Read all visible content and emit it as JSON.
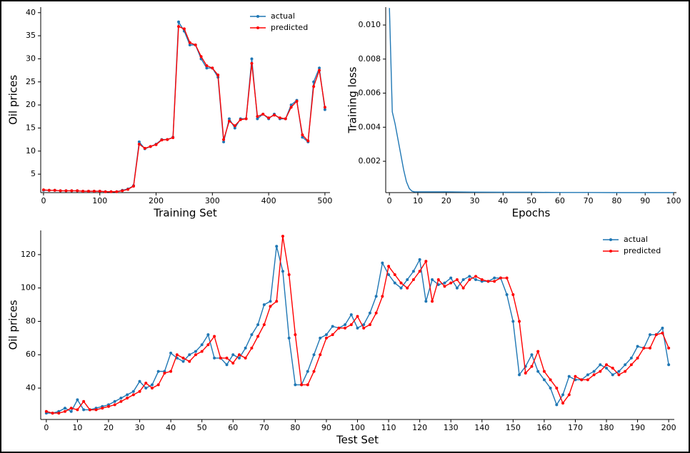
{
  "chart_data": [
    {
      "type": "line",
      "xlabel": "Training Set",
      "ylabel": "Oil prices",
      "legend": "upper right",
      "x": [
        0,
        10,
        20,
        30,
        40,
        50,
        60,
        70,
        80,
        90,
        100,
        110,
        120,
        130,
        140,
        150,
        160,
        170,
        180,
        190,
        200,
        210,
        220,
        230,
        240,
        250,
        260,
        270,
        280,
        290,
        300,
        310,
        320,
        330,
        340,
        350,
        360,
        370,
        380,
        390,
        400,
        410,
        420,
        430,
        440,
        450,
        460,
        470,
        480,
        490,
        500
      ],
      "series": [
        {
          "name": "actual",
          "color": "#1f77b4",
          "values": [
            1.5,
            1.5,
            1.5,
            1.4,
            1.4,
            1.4,
            1.4,
            1.3,
            1.3,
            1.3,
            1.3,
            1.2,
            1.2,
            1.2,
            1.5,
            1.8,
            2.5,
            12,
            10.5,
            11,
            11.5,
            12.5,
            12.5,
            13,
            38,
            36,
            33,
            33,
            30,
            28,
            28,
            26,
            12,
            17,
            15,
            17,
            17,
            30,
            17,
            18,
            17,
            18,
            17,
            17,
            20,
            21,
            13,
            12,
            25,
            28,
            19
          ]
        },
        {
          "name": "predicted",
          "color": "#ff0000",
          "values": [
            1.6,
            1.5,
            1.5,
            1.4,
            1.4,
            1.4,
            1.4,
            1.3,
            1.3,
            1.3,
            1.3,
            1.2,
            1.2,
            1.2,
            1.4,
            1.7,
            2.4,
            11.5,
            10.6,
            11,
            11.4,
            12.4,
            12.5,
            12.9,
            37,
            36.5,
            33.5,
            33,
            30.5,
            28.5,
            28,
            26.5,
            12.5,
            16.5,
            15.5,
            16.8,
            17,
            29,
            17.5,
            18,
            17.2,
            17.8,
            17.2,
            17,
            19.5,
            20.8,
            13.5,
            12.2,
            24,
            27.5,
            19.5
          ]
        }
      ],
      "xlim": [
        -5,
        509
      ],
      "ylim": [
        1,
        41.2
      ],
      "xticks": [
        0,
        100,
        200,
        300,
        400,
        500
      ],
      "yticks": [
        5,
        10,
        15,
        20,
        25,
        30,
        35,
        40
      ]
    },
    {
      "type": "line",
      "xlabel": "Epochs",
      "ylabel": "Training loss",
      "x": [
        0,
        1,
        2,
        3,
        4,
        5,
        6,
        7,
        8,
        9,
        10,
        20,
        30,
        40,
        50,
        60,
        70,
        80,
        90,
        100
      ],
      "series": [
        {
          "color": "#1f77b4",
          "values": [
            0.011,
            0.0049,
            0.0042,
            0.0033,
            0.0024,
            0.0015,
            0.0008,
            0.0004,
            0.00024,
            0.0002,
            0.0002,
            0.0002,
            0.00019,
            0.00018,
            0.00018,
            0.00017,
            0.00017,
            0.00016,
            0.00016,
            0.00016
          ]
        }
      ],
      "xlim": [
        -1.3,
        101
      ],
      "ylim": [
        0.00016,
        0.01105
      ],
      "xticks": [
        0,
        10,
        20,
        30,
        40,
        50,
        60,
        70,
        80,
        90,
        100
      ],
      "yticks": [
        0.002,
        0.004,
        0.006,
        0.008,
        {
          "value": 0.01,
          "label": "0.010"
        }
      ]
    },
    {
      "type": "line",
      "xlabel": "Test Set",
      "ylabel": "Oil prices",
      "legend": "upper right",
      "x": [
        0,
        2,
        4,
        6,
        8,
        10,
        12,
        14,
        16,
        18,
        20,
        22,
        24,
        26,
        28,
        30,
        32,
        34,
        36,
        38,
        40,
        42,
        44,
        46,
        48,
        50,
        52,
        54,
        56,
        58,
        60,
        62,
        64,
        66,
        68,
        70,
        72,
        74,
        76,
        78,
        80,
        82,
        84,
        86,
        88,
        90,
        92,
        94,
        96,
        98,
        100,
        102,
        104,
        106,
        108,
        110,
        112,
        114,
        116,
        118,
        120,
        122,
        124,
        126,
        128,
        130,
        132,
        134,
        136,
        138,
        140,
        142,
        144,
        146,
        148,
        150,
        152,
        154,
        156,
        158,
        160,
        162,
        164,
        166,
        168,
        170,
        172,
        174,
        176,
        178,
        180,
        182,
        184,
        186,
        188,
        190,
        192,
        194,
        196,
        198,
        200
      ],
      "series": [
        {
          "name": "actual",
          "color": "#1f77b4",
          "values": [
            25,
            25,
            26,
            28,
            26,
            33,
            27,
            27,
            28,
            29,
            30,
            32,
            34,
            36,
            38,
            44,
            40,
            42,
            50,
            50,
            61,
            58,
            56,
            60,
            62,
            66,
            72,
            58,
            58,
            54,
            60,
            58,
            64,
            72,
            78,
            90,
            92,
            125,
            110,
            70,
            42,
            42,
            50,
            60,
            70,
            72,
            77,
            76,
            78,
            84,
            76,
            78,
            85,
            95,
            115,
            108,
            103,
            100,
            105,
            110,
            117,
            92,
            105,
            102,
            103,
            106,
            100,
            105,
            107,
            105,
            104,
            104,
            106,
            106,
            96,
            80,
            48,
            53,
            60,
            50,
            45,
            40,
            30,
            36,
            47,
            45,
            45,
            48,
            50,
            54,
            52,
            48,
            50,
            54,
            58,
            65,
            64,
            72,
            72,
            76,
            54
          ]
        },
        {
          "name": "predicted",
          "color": "#ff0000",
          "values": [
            26,
            25,
            25,
            26,
            28,
            27,
            32,
            27,
            27,
            28,
            29,
            30,
            32,
            34,
            36,
            38,
            43,
            40,
            42,
            49,
            50,
            60,
            58,
            56,
            60,
            62,
            66,
            71,
            58,
            58,
            55,
            60,
            58,
            64,
            71,
            78,
            89,
            92,
            131,
            108,
            72,
            42,
            42,
            50,
            60,
            70,
            72,
            76,
            76,
            78,
            83,
            76,
            78,
            85,
            95,
            113,
            108,
            103,
            100,
            105,
            110,
            116,
            92,
            105,
            101,
            103,
            105,
            100,
            105,
            107,
            105,
            104,
            104,
            106,
            106,
            96,
            80,
            49,
            53,
            62,
            50,
            45,
            40,
            31,
            36,
            47,
            45,
            45,
            48,
            50,
            54,
            52,
            48,
            50,
            54,
            58,
            64,
            64,
            72,
            73,
            64
          ]
        }
      ],
      "xlim": [
        -1.8,
        201.8
      ],
      "ylim": [
        21.2,
        134.5
      ],
      "xticks": [
        0,
        10,
        20,
        30,
        40,
        50,
        60,
        70,
        80,
        90,
        100,
        110,
        120,
        130,
        140,
        150,
        160,
        170,
        180,
        190,
        200
      ],
      "yticks": [
        40,
        60,
        80,
        100,
        120
      ]
    }
  ]
}
